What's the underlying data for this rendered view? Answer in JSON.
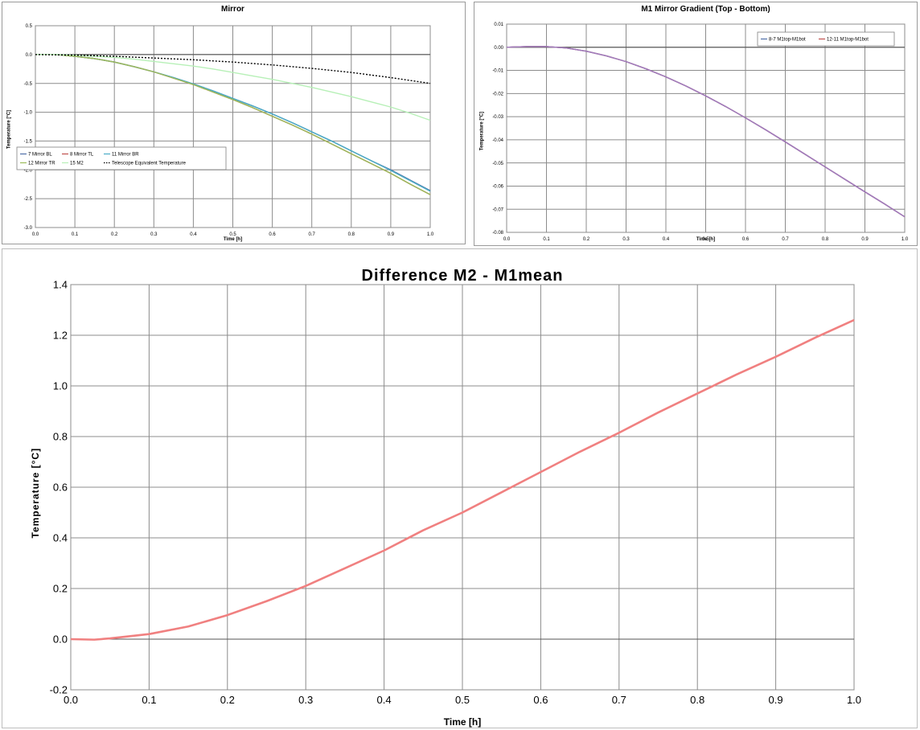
{
  "chart_data": [
    {
      "type": "line",
      "title": "Mirror",
      "xlabel": "Time [h]",
      "ylabel": "Temperature [°C]",
      "xlim": [
        0.0,
        1.0
      ],
      "ylim": [
        -3.0,
        0.5
      ],
      "xticks": [
        "0.0",
        "0.1",
        "0.2",
        "0.3",
        "0.4",
        "0.5",
        "0.6",
        "0.7",
        "0.8",
        "0.9",
        "1.0"
      ],
      "yticks": [
        "0.5",
        "0.0",
        "-0.5",
        "-1.0",
        "-1.5",
        "-2.0",
        "-2.5",
        "-3.0"
      ],
      "grid": true,
      "legend_position": "bottom-left",
      "series": [
        {
          "name": "7 Mirror BL",
          "color": "#4f6fa8",
          "style": "solid",
          "x": [
            0,
            0.05,
            0.1,
            0.15,
            0.2,
            0.25,
            0.3,
            0.35,
            0.4,
            0.45,
            0.5,
            0.55,
            0.6,
            0.65,
            0.7,
            0.75,
            0.8,
            0.85,
            0.9,
            0.95,
            1.0
          ],
          "y": [
            0,
            0,
            -0.03,
            -0.07,
            -0.13,
            -0.21,
            -0.3,
            -0.4,
            -0.51,
            -0.63,
            -0.76,
            -0.89,
            -1.03,
            -1.18,
            -1.34,
            -1.5,
            -1.67,
            -1.84,
            -2.0,
            -2.18,
            -2.36
          ]
        },
        {
          "name": "8 Mirror TL",
          "color": "#c0504d",
          "style": "solid",
          "x": [
            0,
            0.05,
            0.1,
            0.15,
            0.2,
            0.25,
            0.3,
            0.35,
            0.4,
            0.45,
            0.5,
            0.55,
            0.6,
            0.65,
            0.7,
            0.75,
            0.8,
            0.85,
            0.9,
            0.95,
            1.0
          ],
          "y": [
            0,
            0,
            -0.03,
            -0.07,
            -0.13,
            -0.21,
            -0.3,
            -0.41,
            -0.52,
            -0.65,
            -0.78,
            -0.92,
            -1.07,
            -1.22,
            -1.38,
            -1.55,
            -1.72,
            -1.89,
            -2.06,
            -2.25,
            -2.43
          ]
        },
        {
          "name": "11 Mirror BR",
          "color": "#4bacc6",
          "style": "solid",
          "x": [
            0,
            0.05,
            0.1,
            0.15,
            0.2,
            0.25,
            0.3,
            0.35,
            0.4,
            0.45,
            0.5,
            0.55,
            0.6,
            0.65,
            0.7,
            0.75,
            0.8,
            0.85,
            0.9,
            0.95,
            1.0
          ],
          "y": [
            0,
            0,
            -0.03,
            -0.07,
            -0.13,
            -0.21,
            -0.3,
            -0.4,
            -0.51,
            -0.63,
            -0.76,
            -0.89,
            -1.03,
            -1.18,
            -1.34,
            -1.5,
            -1.67,
            -1.84,
            -2.01,
            -2.19,
            -2.37
          ]
        },
        {
          "name": "12 Mirror TR",
          "color": "#9bbb59",
          "style": "solid",
          "x": [
            0,
            0.05,
            0.1,
            0.15,
            0.2,
            0.25,
            0.3,
            0.35,
            0.4,
            0.45,
            0.5,
            0.55,
            0.6,
            0.65,
            0.7,
            0.75,
            0.8,
            0.85,
            0.9,
            0.95,
            1.0
          ],
          "y": [
            0,
            0,
            -0.03,
            -0.07,
            -0.13,
            -0.21,
            -0.3,
            -0.41,
            -0.52,
            -0.65,
            -0.78,
            -0.92,
            -1.07,
            -1.22,
            -1.38,
            -1.55,
            -1.72,
            -1.89,
            -2.06,
            -2.25,
            -2.43
          ]
        },
        {
          "name": "15 M2",
          "color": "#b7f0b7",
          "style": "solid",
          "x": [
            0,
            0.05,
            0.1,
            0.15,
            0.2,
            0.25,
            0.3,
            0.35,
            0.4,
            0.45,
            0.5,
            0.55,
            0.6,
            0.65,
            0.7,
            0.75,
            0.8,
            0.85,
            0.9,
            0.95,
            1.0
          ],
          "y": [
            0,
            0,
            -0.01,
            -0.03,
            -0.05,
            -0.08,
            -0.12,
            -0.16,
            -0.2,
            -0.25,
            -0.31,
            -0.37,
            -0.43,
            -0.5,
            -0.57,
            -0.65,
            -0.73,
            -0.82,
            -0.91,
            -1.02,
            -1.14
          ]
        },
        {
          "name": "Telescope Equivalent Temperature",
          "color": "#000000",
          "style": "dotted",
          "x": [
            0,
            0.1,
            0.2,
            0.3,
            0.4,
            0.5,
            0.6,
            0.7,
            0.8,
            0.9,
            1.0
          ],
          "y": [
            0,
            -0.01,
            -0.03,
            -0.06,
            -0.09,
            -0.13,
            -0.18,
            -0.24,
            -0.31,
            -0.4,
            -0.5
          ]
        }
      ]
    },
    {
      "type": "line",
      "title": "M1 Mirror Gradient (Top - Bottom)",
      "xlabel": "Time [h]",
      "ylabel": "Temperature [°C]",
      "xlim": [
        0.0,
        1.0
      ],
      "ylim": [
        -0.08,
        0.01
      ],
      "xticks": [
        "0.0",
        "0.1",
        "0.2",
        "0.3",
        "0.4",
        "0.5",
        "0.6",
        "0.7",
        "0.8",
        "0.9",
        "1.0"
      ],
      "yticks": [
        "0.01",
        "0.00",
        "-0.01",
        "-0.02",
        "-0.03",
        "-0.04",
        "-0.05",
        "-0.06",
        "-0.07",
        "-0.08"
      ],
      "grid": true,
      "legend_position": "top-right",
      "series": [
        {
          "name": "8-7 M1top-M1bot",
          "color": "#4f6fa8",
          "style": "solid",
          "x": [
            0,
            0.05,
            0.1,
            0.15,
            0.2,
            0.25,
            0.3,
            0.35,
            0.4,
            0.45,
            0.5,
            0.55,
            0.6,
            0.65,
            0.7,
            0.75,
            0.8,
            0.85,
            0.9,
            0.95,
            1.0
          ],
          "y": [
            0,
            0.0003,
            0.0003,
            -0.0003,
            -0.0017,
            -0.0037,
            -0.0062,
            -0.0093,
            -0.0128,
            -0.0167,
            -0.021,
            -0.0256,
            -0.0305,
            -0.0356,
            -0.0409,
            -0.0463,
            -0.0517,
            -0.0571,
            -0.0625,
            -0.0678,
            -0.0733
          ]
        },
        {
          "name": "12-11 M1top-M1bot",
          "color": "#c0504d",
          "style": "solid",
          "x": [
            0,
            0.05,
            0.1,
            0.15,
            0.2,
            0.25,
            0.3,
            0.35,
            0.4,
            0.45,
            0.5,
            0.55,
            0.6,
            0.65,
            0.7,
            0.75,
            0.8,
            0.85,
            0.9,
            0.95,
            1.0
          ],
          "y": [
            0,
            0.0003,
            0.0003,
            -0.0003,
            -0.0017,
            -0.0037,
            -0.0062,
            -0.0093,
            -0.0128,
            -0.0167,
            -0.021,
            -0.0256,
            -0.0305,
            -0.0356,
            -0.0409,
            -0.0463,
            -0.0517,
            -0.0571,
            -0.0625,
            -0.0678,
            -0.0733
          ]
        },
        {
          "name": "",
          "color": "#a07cc0",
          "style": "solid",
          "x": [
            0,
            0.05,
            0.1,
            0.15,
            0.2,
            0.25,
            0.3,
            0.35,
            0.4,
            0.45,
            0.5,
            0.55,
            0.6,
            0.65,
            0.7,
            0.75,
            0.8,
            0.85,
            0.9,
            0.95,
            1.0
          ],
          "y": [
            0,
            0.0003,
            0.0003,
            -0.0003,
            -0.0017,
            -0.0037,
            -0.0062,
            -0.0093,
            -0.0128,
            -0.0167,
            -0.021,
            -0.0256,
            -0.0305,
            -0.0356,
            -0.0409,
            -0.0463,
            -0.0517,
            -0.0571,
            -0.0625,
            -0.0678,
            -0.0733
          ]
        }
      ]
    },
    {
      "type": "line",
      "title": "Difference M2 - M1mean",
      "xlabel": "Time [h]",
      "ylabel": "Temperature [°C]",
      "xlim": [
        0.0,
        1.0
      ],
      "ylim": [
        -0.2,
        1.4
      ],
      "xticks": [
        "0.0",
        "0.1",
        "0.2",
        "0.3",
        "0.4",
        "0.5",
        "0.6",
        "0.7",
        "0.8",
        "0.9",
        "1.0"
      ],
      "yticks": [
        "1.4",
        "1.2",
        "1.0",
        "0.8",
        "0.6",
        "0.4",
        "0.2",
        "0.0",
        "-0.2"
      ],
      "grid": true,
      "series": [
        {
          "name": "",
          "color": "#f08080",
          "style": "solid",
          "x": [
            0,
            0.03,
            0.05,
            0.1,
            0.15,
            0.2,
            0.25,
            0.3,
            0.35,
            0.4,
            0.45,
            0.5,
            0.55,
            0.6,
            0.65,
            0.7,
            0.75,
            0.8,
            0.85,
            0.9,
            0.95,
            1.0
          ],
          "y": [
            0,
            -0.002,
            0.003,
            0.02,
            0.05,
            0.095,
            0.15,
            0.21,
            0.28,
            0.35,
            0.43,
            0.5,
            0.58,
            0.66,
            0.74,
            0.815,
            0.895,
            0.97,
            1.045,
            1.115,
            1.19,
            1.26
          ]
        }
      ]
    }
  ]
}
